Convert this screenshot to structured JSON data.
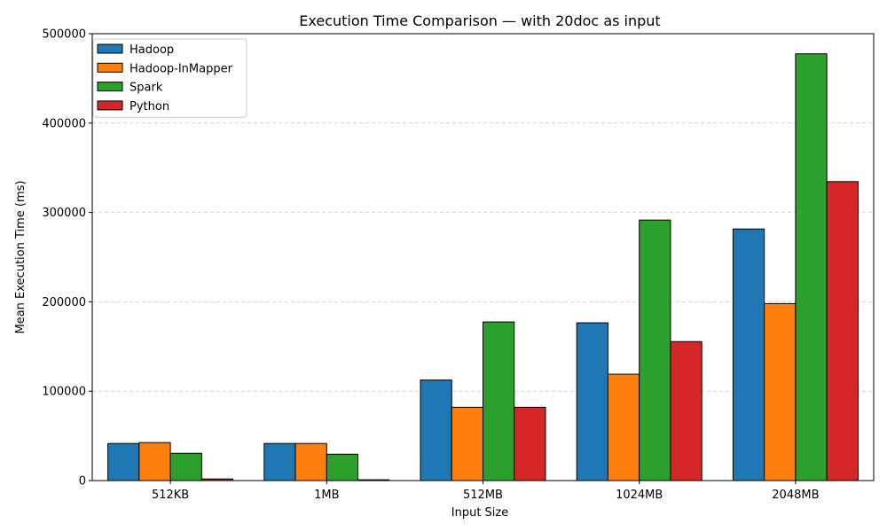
{
  "chart_data": {
    "type": "bar",
    "title": "Execution Time Comparison — with 20doc as input",
    "xlabel": "Input Size",
    "ylabel": "Mean Execution Time (ms)",
    "categories": [
      "512KB",
      "1MB",
      "512MB",
      "1024MB",
      "2048MB"
    ],
    "ylim": [
      0,
      500000
    ],
    "yticks": [
      0,
      100000,
      200000,
      300000,
      400000,
      500000
    ],
    "grid": "y-dashed",
    "legend_position": "top-left",
    "series": [
      {
        "name": "Hadoop",
        "color": "#1f77b4",
        "values": [
          41500,
          41500,
          112500,
          176500,
          281500
        ]
      },
      {
        "name": "Hadoop-InMapper",
        "color": "#ff7f0e",
        "values": [
          42500,
          41500,
          82000,
          119000,
          198000
        ]
      },
      {
        "name": "Spark",
        "color": "#2ca02c",
        "values": [
          30500,
          29500,
          177500,
          291500,
          477500
        ]
      },
      {
        "name": "Python",
        "color": "#d62728",
        "values": [
          1800,
          900,
          82000,
          155500,
          334500
        ]
      }
    ]
  }
}
